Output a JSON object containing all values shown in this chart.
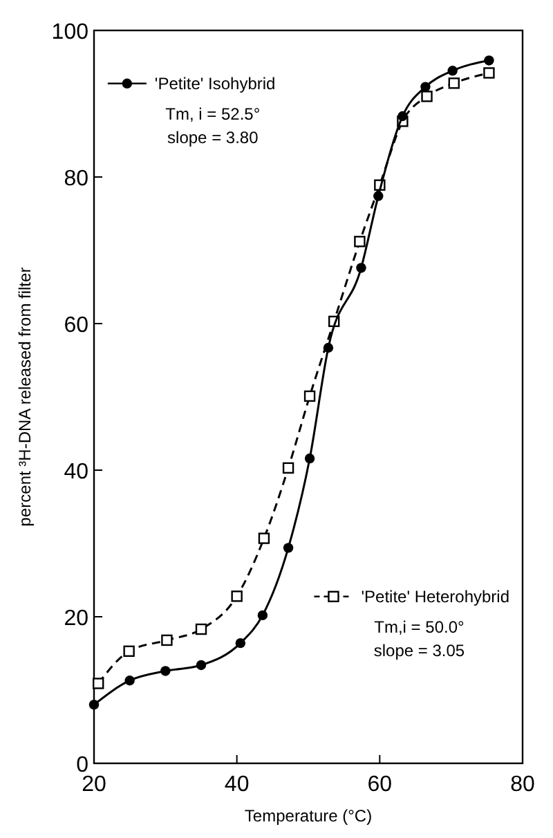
{
  "chart_data": {
    "type": "line",
    "xlabel": "Temperature (°C)",
    "ylabel": "percent ³H-DNA released from filter",
    "xlim": [
      20,
      80
    ],
    "xticks": [
      20,
      40,
      60,
      80
    ],
    "ylim": [
      0,
      100
    ],
    "yticks": [
      0,
      20,
      40,
      60,
      80,
      100
    ],
    "grid": false,
    "legend": "top left",
    "series": [
      {
        "name": "'Petite' Isohybrid",
        "color": "#000000",
        "marker": "circle",
        "line_style": "solid",
        "x": [
          20,
          25,
          30,
          35,
          40.5,
          43.6,
          47.2,
          50.2,
          52.8,
          57.4,
          59.8,
          63.2,
          66.4,
          70.2,
          75.3
        ],
        "values": [
          8,
          11.3,
          12.6,
          13.4,
          16.4,
          20.2,
          29.4,
          41.6,
          56.7,
          67.6,
          77.4,
          88.3,
          92.3,
          94.5,
          95.9
        ]
      },
      {
        "name": "'Petite' Heterohybrid",
        "color": "#000000",
        "marker": "square",
        "line_style": "dashed",
        "x": [
          20.6,
          24.9,
          30.2,
          35,
          40,
          43.8,
          47.2,
          50.2,
          53.6,
          57.2,
          60,
          63.2,
          66.6,
          70.4,
          75.3
        ],
        "values": [
          10.9,
          15.3,
          16.8,
          18.3,
          22.8,
          30.7,
          40.3,
          50.1,
          60.3,
          71.2,
          78.9,
          87.6,
          91,
          92.8,
          94.2
        ]
      }
    ],
    "annotations": [
      "Tm, i = 52.5°",
      "slope = 3.80",
      "Tm,i = 50.0°",
      "slope = 3.05"
    ]
  }
}
